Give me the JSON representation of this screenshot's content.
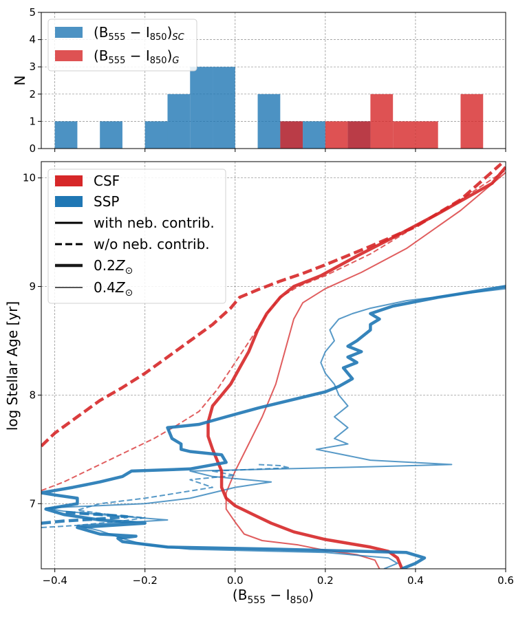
{
  "chart_data": [
    {
      "type": "bar",
      "panel": "top histogram",
      "ylabel": "N",
      "xlim": [
        -0.43,
        0.6
      ],
      "ylim": [
        0,
        5
      ],
      "yticks": [
        "0",
        "1",
        "2",
        "3",
        "4",
        "5"
      ],
      "grid": true,
      "legend_placement": "top-left",
      "bin_width": 0.05,
      "series": [
        {
          "name_base": "(B",
          "name_sub1": "555",
          "name_mid": " − I",
          "name_sub2": "850",
          "name_tail": ")",
          "name_sub3": "SC",
          "color": "#1f77b4",
          "bins": [
            {
              "x0": -0.4,
              "count": 1
            },
            {
              "x0": -0.3,
              "count": 1
            },
            {
              "x0": -0.2,
              "count": 1
            },
            {
              "x0": -0.15,
              "count": 2
            },
            {
              "x0": -0.1,
              "count": 3
            },
            {
              "x0": -0.05,
              "count": 3
            },
            {
              "x0": 0.05,
              "count": 2
            },
            {
              "x0": 0.1,
              "count": 1
            },
            {
              "x0": 0.15,
              "count": 1
            },
            {
              "x0": 0.25,
              "count": 1
            }
          ]
        },
        {
          "name_base": "(B",
          "name_sub1": "555",
          "name_mid": " − I",
          "name_sub2": "850",
          "name_tail": ")",
          "name_sub3": "G",
          "color": "#d62728",
          "bins": [
            {
              "x0": 0.1,
              "count": 1
            },
            {
              "x0": 0.2,
              "count": 1
            },
            {
              "x0": 0.25,
              "count": 1
            },
            {
              "x0": 0.3,
              "count": 2
            },
            {
              "x0": 0.35,
              "count": 1
            },
            {
              "x0": 0.4,
              "count": 1
            },
            {
              "x0": 0.5,
              "count": 2
            }
          ]
        }
      ]
    },
    {
      "type": "line",
      "panel": "bottom tracks",
      "xlabel_base": "(B",
      "xlabel_sub1": "555",
      "xlabel_mid": " − I",
      "xlabel_sub2": "850",
      "xlabel_tail": ")",
      "ylabel": "log Stellar Age [yr]",
      "xlim": [
        -0.43,
        0.6
      ],
      "ylim": [
        6.4,
        10.15
      ],
      "xticks": [
        "−0.4",
        "−0.2",
        "0.0",
        "0.2",
        "0.4",
        "0.6"
      ],
      "yticks": [
        "7",
        "8",
        "9",
        "10"
      ],
      "grid": true,
      "legend_placement": "top-left",
      "legend": {
        "csf": "CSF",
        "ssp": "SSP",
        "with_neb": "with neb. contrib.",
        "without_neb": "w/o neb. contrib.",
        "z02_base": "0.2",
        "z04_base": "0.4",
        "z_symbol": "Z",
        "z_sub": "⊙"
      },
      "colors": {
        "CSF": "#d62728",
        "SSP": "#1f77b4"
      },
      "series": [
        {
          "name": "CSF with neb. contrib. 0.2Z⊙",
          "model": "CSF",
          "style": "solid",
          "metallicity": "0.2",
          "points": [
            [
              0.37,
              6.4
            ],
            [
              0.36,
              6.5
            ],
            [
              0.34,
              6.56
            ],
            [
              0.3,
              6.6
            ],
            [
              0.2,
              6.67
            ],
            [
              0.13,
              6.74
            ],
            [
              0.08,
              6.82
            ],
            [
              0.04,
              6.9
            ],
            [
              0.0,
              6.98
            ],
            [
              -0.02,
              7.05
            ],
            [
              -0.03,
              7.15
            ],
            [
              -0.03,
              7.3
            ],
            [
              -0.05,
              7.5
            ],
            [
              -0.06,
              7.62
            ],
            [
              -0.06,
              7.75
            ],
            [
              -0.05,
              7.9
            ],
            [
              -0.03,
              8.0
            ],
            [
              -0.01,
              8.1
            ],
            [
              0.01,
              8.25
            ],
            [
              0.03,
              8.4
            ],
            [
              0.05,
              8.6
            ],
            [
              0.07,
              8.75
            ],
            [
              0.1,
              8.9
            ],
            [
              0.13,
              9.0
            ],
            [
              0.19,
              9.1
            ],
            [
              0.27,
              9.28
            ],
            [
              0.35,
              9.45
            ],
            [
              0.45,
              9.67
            ],
            [
              0.57,
              9.95
            ],
            [
              0.6,
              10.1
            ]
          ]
        },
        {
          "name": "CSF w/o neb. contrib. 0.2Z⊙",
          "model": "CSF",
          "style": "dashed",
          "metallicity": "0.2",
          "points": [
            [
              -0.43,
              7.53
            ],
            [
              -0.4,
              7.65
            ],
            [
              -0.35,
              7.8
            ],
            [
              -0.3,
              7.95
            ],
            [
              -0.25,
              8.07
            ],
            [
              -0.2,
              8.2
            ],
            [
              -0.15,
              8.35
            ],
            [
              -0.1,
              8.5
            ],
            [
              -0.05,
              8.65
            ],
            [
              -0.01,
              8.8
            ],
            [
              0.01,
              8.9
            ],
            [
              0.05,
              8.97
            ],
            [
              0.1,
              9.05
            ],
            [
              0.15,
              9.12
            ],
            [
              0.2,
              9.2
            ],
            [
              0.3,
              9.37
            ],
            [
              0.4,
              9.55
            ],
            [
              0.5,
              9.8
            ],
            [
              0.59,
              10.13
            ]
          ]
        },
        {
          "name": "CSF with neb. contrib. 0.4Z⊙",
          "model": "CSF",
          "style": "solid",
          "metallicity": "0.4",
          "points": [
            [
              0.32,
              6.4
            ],
            [
              0.31,
              6.48
            ],
            [
              0.27,
              6.53
            ],
            [
              0.2,
              6.57
            ],
            [
              0.14,
              6.62
            ],
            [
              0.06,
              6.66
            ],
            [
              0.02,
              6.72
            ],
            [
              0.0,
              6.83
            ],
            [
              -0.02,
              6.95
            ],
            [
              -0.02,
              7.1
            ],
            [
              0.0,
              7.3
            ],
            [
              0.03,
              7.55
            ],
            [
              0.06,
              7.8
            ],
            [
              0.09,
              8.1
            ],
            [
              0.11,
              8.4
            ],
            [
              0.13,
              8.7
            ],
            [
              0.15,
              8.85
            ],
            [
              0.2,
              8.98
            ],
            [
              0.28,
              9.13
            ],
            [
              0.38,
              9.35
            ],
            [
              0.5,
              9.7
            ],
            [
              0.6,
              10.05
            ]
          ]
        },
        {
          "name": "CSF w/o neb. contrib. 0.4Z⊙",
          "model": "CSF",
          "style": "dashed",
          "metallicity": "0.4",
          "points": [
            [
              -0.43,
              7.12
            ],
            [
              -0.38,
              7.2
            ],
            [
              -0.33,
              7.3
            ],
            [
              -0.28,
              7.4
            ],
            [
              -0.23,
              7.5
            ],
            [
              -0.18,
              7.6
            ],
            [
              -0.13,
              7.72
            ],
            [
              -0.08,
              7.85
            ],
            [
              -0.04,
              8.05
            ],
            [
              0.0,
              8.3
            ],
            [
              0.04,
              8.55
            ],
            [
              0.07,
              8.75
            ],
            [
              0.1,
              8.9
            ],
            [
              0.14,
              9.0
            ],
            [
              0.2,
              9.1
            ],
            [
              0.3,
              9.3
            ],
            [
              0.4,
              9.55
            ],
            [
              0.5,
              9.8
            ],
            [
              0.6,
              10.07
            ]
          ]
        },
        {
          "name": "SSP with neb. contrib. 0.2Z⊙",
          "model": "SSP",
          "style": "solid",
          "metallicity": "0.2",
          "points": [
            [
              0.37,
              6.4
            ],
            [
              0.4,
              6.45
            ],
            [
              0.42,
              6.5
            ],
            [
              0.38,
              6.55
            ],
            [
              0.1,
              6.58
            ],
            [
              -0.15,
              6.6
            ],
            [
              -0.25,
              6.65
            ],
            [
              -0.26,
              6.68
            ],
            [
              -0.22,
              6.7
            ],
            [
              -0.3,
              6.72
            ],
            [
              -0.35,
              6.78
            ],
            [
              -0.2,
              6.82
            ],
            [
              -0.3,
              6.85
            ],
            [
              -0.38,
              6.9
            ],
            [
              -0.42,
              6.95
            ],
            [
              -0.35,
              7.0
            ],
            [
              -0.35,
              7.05
            ],
            [
              -0.4,
              7.08
            ],
            [
              -0.43,
              7.1
            ],
            [
              -0.36,
              7.15
            ],
            [
              -0.3,
              7.2
            ],
            [
              -0.25,
              7.25
            ],
            [
              -0.23,
              7.3
            ],
            [
              -0.1,
              7.32
            ],
            [
              -0.02,
              7.38
            ],
            [
              -0.03,
              7.45
            ],
            [
              -0.1,
              7.48
            ],
            [
              -0.12,
              7.5
            ],
            [
              -0.12,
              7.55
            ],
            [
              -0.14,
              7.6
            ],
            [
              -0.15,
              7.7
            ],
            [
              -0.08,
              7.73
            ],
            [
              -0.02,
              7.8
            ],
            [
              0.05,
              7.88
            ],
            [
              0.15,
              7.98
            ],
            [
              0.2,
              8.03
            ],
            [
              0.23,
              8.08
            ],
            [
              0.26,
              8.15
            ],
            [
              0.24,
              8.25
            ],
            [
              0.27,
              8.3
            ],
            [
              0.25,
              8.35
            ],
            [
              0.28,
              8.4
            ],
            [
              0.25,
              8.45
            ],
            [
              0.27,
              8.5
            ],
            [
              0.3,
              8.6
            ],
            [
              0.3,
              8.65
            ],
            [
              0.32,
              8.7
            ],
            [
              0.3,
              8.75
            ],
            [
              0.35,
              8.82
            ],
            [
              0.45,
              8.9
            ],
            [
              0.6,
              9.0
            ]
          ]
        },
        {
          "name": "SSP w/o neb. contrib. 0.2Z⊙",
          "model": "SSP",
          "style": "dashed",
          "metallicity": "0.2",
          "points": [
            [
              -0.43,
              6.82
            ],
            [
              -0.38,
              6.84
            ],
            [
              -0.3,
              6.86
            ],
            [
              -0.24,
              6.88
            ],
            [
              -0.3,
              6.9
            ],
            [
              -0.38,
              6.92
            ]
          ]
        },
        {
          "name": "SSP with neb. contrib. 0.4Z⊙",
          "model": "SSP",
          "style": "solid",
          "metallicity": "0.4",
          "points": [
            [
              0.33,
              6.4
            ],
            [
              0.36,
              6.45
            ],
            [
              0.34,
              6.5
            ],
            [
              0.2,
              6.55
            ],
            [
              -0.1,
              6.58
            ],
            [
              -0.2,
              6.62
            ],
            [
              -0.25,
              6.68
            ],
            [
              -0.3,
              6.75
            ],
            [
              -0.35,
              6.8
            ],
            [
              -0.15,
              6.85
            ],
            [
              -0.3,
              6.9
            ],
            [
              -0.38,
              6.93
            ],
            [
              -0.42,
              6.96
            ],
            [
              -0.2,
              7.0
            ],
            [
              -0.1,
              7.05
            ],
            [
              0.0,
              7.15
            ],
            [
              0.08,
              7.2
            ],
            [
              -0.05,
              7.25
            ],
            [
              -0.1,
              7.3
            ],
            [
              0.1,
              7.32
            ],
            [
              0.3,
              7.34
            ],
            [
              0.48,
              7.36
            ],
            [
              0.3,
              7.4
            ],
            [
              0.18,
              7.5
            ],
            [
              0.25,
              7.55
            ],
            [
              0.22,
              7.6
            ],
            [
              0.25,
              7.7
            ],
            [
              0.22,
              7.8
            ],
            [
              0.25,
              7.9
            ],
            [
              0.23,
              8.0
            ],
            [
              0.22,
              8.1
            ],
            [
              0.2,
              8.2
            ],
            [
              0.19,
              8.3
            ],
            [
              0.2,
              8.4
            ],
            [
              0.22,
              8.5
            ],
            [
              0.21,
              8.6
            ],
            [
              0.23,
              8.7
            ],
            [
              0.26,
              8.75
            ],
            [
              0.3,
              8.8
            ],
            [
              0.38,
              8.87
            ],
            [
              0.5,
              8.93
            ],
            [
              0.6,
              8.98
            ]
          ]
        },
        {
          "name": "SSP w/o neb. contrib. 0.4Z⊙",
          "model": "SSP",
          "style": "dashed",
          "metallicity": "0.4",
          "points": [
            [
              -0.43,
              6.78
            ],
            [
              -0.35,
              6.8
            ],
            [
              -0.25,
              6.84
            ],
            [
              -0.2,
              6.87
            ],
            [
              -0.28,
              6.9
            ],
            [
              -0.35,
              6.94
            ],
            [
              -0.3,
              7.0
            ],
            [
              -0.2,
              7.05
            ],
            [
              -0.05,
              7.15
            ],
            [
              -0.1,
              7.22
            ],
            [
              0.0,
              7.26
            ],
            [
              -0.05,
              7.3
            ],
            [
              0.12,
              7.33
            ],
            [
              0.1,
              7.35
            ],
            [
              0.05,
              7.36
            ]
          ]
        }
      ]
    }
  ]
}
